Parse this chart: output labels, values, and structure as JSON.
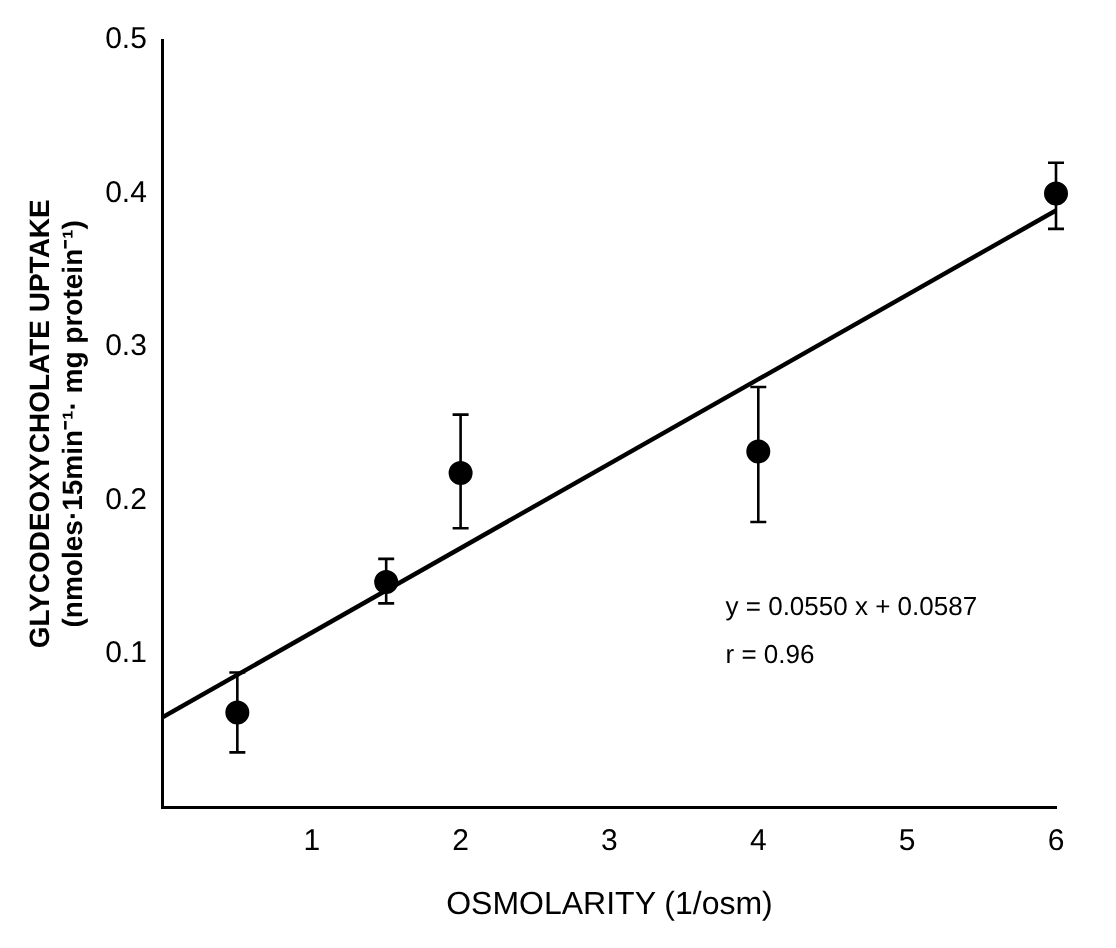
{
  "chart_data": {
    "type": "scatter",
    "xlabel": "OSMOLARITY (1/osm)",
    "ylabel": "GLYCODEOXYCHOLATE UPTAKE\n(nmoles·15min⁻¹· mg protein⁻¹)",
    "series": [
      {
        "marker": "circle",
        "color": "#000000",
        "x": [
          0.5,
          1.5,
          2,
          4,
          6
        ],
        "values": [
          0.062,
          0.147,
          0.218,
          0.232,
          0.4
        ],
        "errors": [
          [
            0.036,
            0.088
          ],
          [
            0.133,
            0.162
          ],
          [
            0.182,
            0.256
          ],
          [
            0.186,
            0.274
          ],
          [
            0.377,
            0.42
          ]
        ]
      },
      {
        "type": "line",
        "marker": "none",
        "color": "#000000",
        "x": [
          0,
          6
        ],
        "values": [
          0.059,
          0.389
        ]
      }
    ],
    "xlim": [
      0,
      6
    ],
    "xticks": [
      1,
      2,
      3,
      4,
      5,
      6
    ],
    "ylim": [
      0,
      0.5
    ],
    "yticks": [
      0.1,
      0.2,
      0.3,
      0.4,
      0.5
    ],
    "line_style": "solid",
    "grid": false,
    "legend": false,
    "annotations": [
      "y = 0.0550 x + 0.0587",
      "r = 0.96"
    ]
  }
}
